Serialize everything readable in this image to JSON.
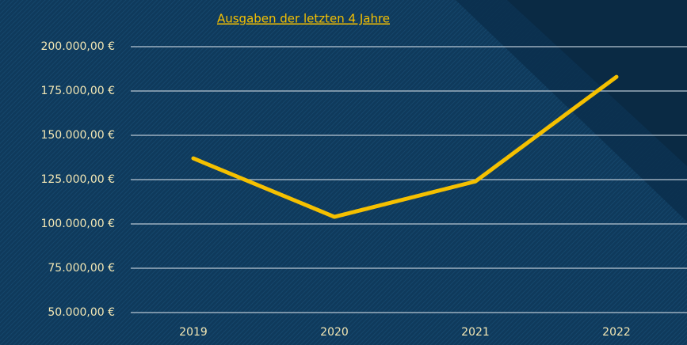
{
  "chart_data": {
    "type": "line",
    "title": "Ausgaben der letzten 4 Jahre",
    "categories": [
      "2019",
      "2020",
      "2021",
      "2022"
    ],
    "series": [
      {
        "name": "Ausgaben",
        "color": "#f5c000",
        "values": [
          137000,
          104000,
          124000,
          183000
        ]
      }
    ],
    "ylim": [
      50000,
      200000
    ],
    "yticks": [
      {
        "value": 50000,
        "label": "50.000,00 €"
      },
      {
        "value": 75000,
        "label": "75.000,00 €"
      },
      {
        "value": 100000,
        "label": "100.000,00 €"
      },
      {
        "value": 125000,
        "label": "125.000,00 €"
      },
      {
        "value": 150000,
        "label": "150.000,00 €"
      },
      {
        "value": 175000,
        "label": "175.000,00 €"
      },
      {
        "value": 200000,
        "label": "200.000,00 €"
      }
    ],
    "grid": true
  }
}
